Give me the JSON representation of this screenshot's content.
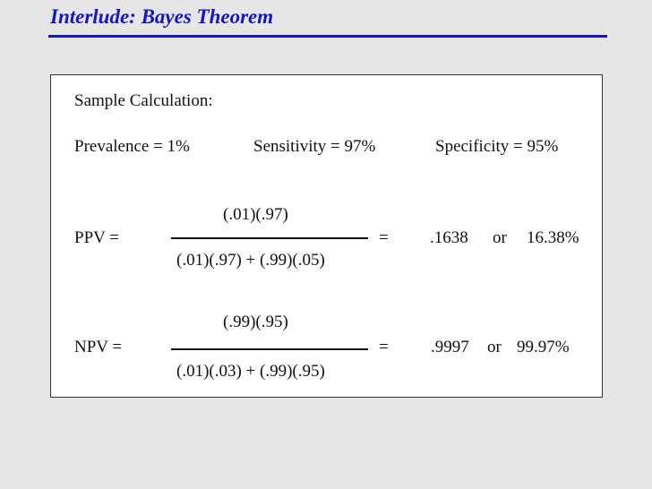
{
  "slide": {
    "title": "Interlude: Bayes Theorem"
  },
  "panel": {
    "heading": "Sample Calculation:",
    "params": {
      "prevalence": "Prevalence = 1%",
      "sensitivity": "Sensitivity = 97%",
      "specificity": "Specificity = 95%"
    },
    "ppv": {
      "label": "PPV =",
      "numerator": "(.01)(.97)",
      "denominator": "(.01)(.97) + (.99)(.05)",
      "equals": "=",
      "value": ".1638",
      "or": "or",
      "percent": "16.38%"
    },
    "npv": {
      "label": "NPV =",
      "numerator": "(.99)(.95)",
      "denominator": "(.01)(.03) + (.99)(.95)",
      "equals": "=",
      "value": ".9997",
      "or": "or",
      "percent": "99.97%"
    }
  }
}
